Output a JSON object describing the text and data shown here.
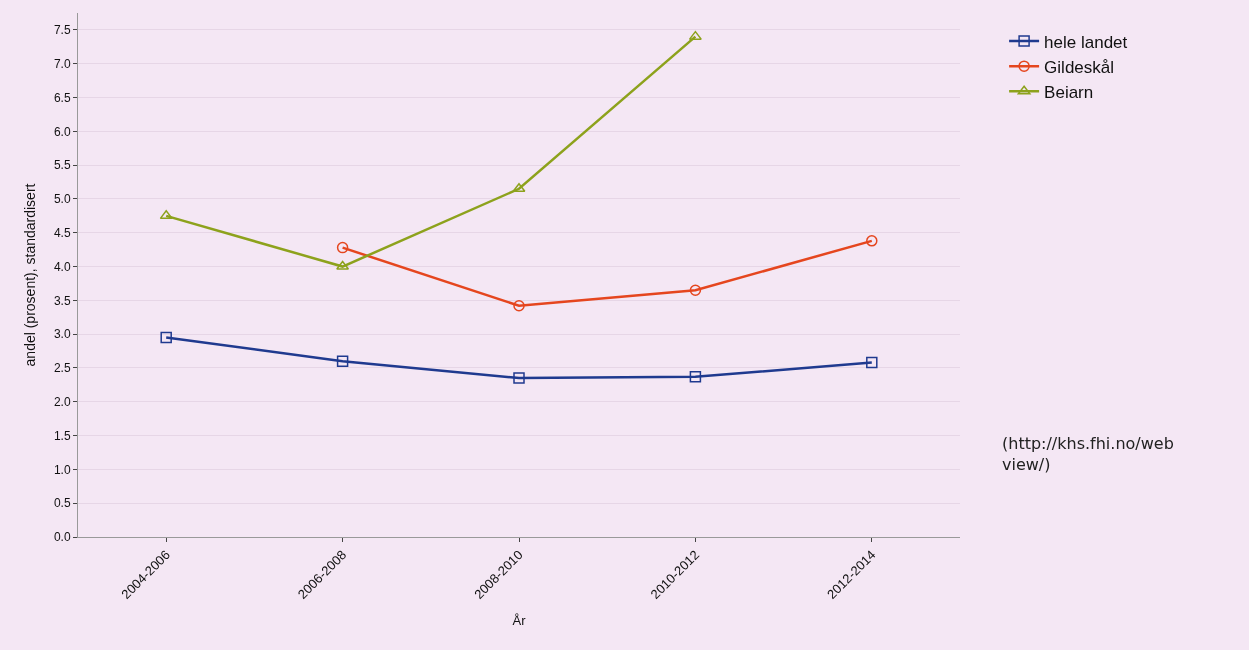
{
  "chart_data": {
    "type": "line",
    "xlabel": "År",
    "ylabel": "andel (prosent), standardisert",
    "categories": [
      "2004-2006",
      "2006-2008",
      "2008-2010",
      "2010-2012",
      "2012-2014"
    ],
    "series": [
      {
        "name": "hele landet",
        "color": "#1f3a8f",
        "marker": "square",
        "values": [
          2.95,
          2.6,
          2.35,
          2.37,
          2.58
        ]
      },
      {
        "name": "Gildeskål",
        "color": "#e5461e",
        "marker": "circle",
        "values": [
          null,
          4.28,
          3.42,
          3.65,
          4.38
        ]
      },
      {
        "name": "Beiarn",
        "color": "#8da21c",
        "marker": "triangle",
        "values": [
          4.75,
          4.0,
          5.15,
          7.4,
          null
        ]
      }
    ],
    "ylim": [
      0,
      7.75
    ],
    "yticks": [
      {
        "value": 0,
        "label": "0.0"
      },
      {
        "value": 0.5,
        "label": "0.5"
      },
      {
        "value": 1,
        "label": "1.0"
      },
      {
        "value": 1.5,
        "label": "1.5"
      },
      {
        "value": 2,
        "label": "2.0"
      },
      {
        "value": 2.5,
        "label": "2.5"
      },
      {
        "value": 3,
        "label": "3.0"
      },
      {
        "value": 3.5,
        "label": "3.5"
      },
      {
        "value": 4,
        "label": "4.0"
      },
      {
        "value": 4.5,
        "label": "4.5"
      },
      {
        "value": 5,
        "label": "5.0"
      },
      {
        "value": 5.5,
        "label": "5.5"
      },
      {
        "value": 6,
        "label": "6.0"
      },
      {
        "value": 6.5,
        "label": "6.5"
      },
      {
        "value": 7,
        "label": "7.0"
      },
      {
        "value": 7.5,
        "label": "7.5"
      }
    ],
    "grid": "y",
    "legend": "top right",
    "line_style": "solid",
    "annotations": [
      "(http://khs.fhi.no/webview/)"
    ]
  }
}
